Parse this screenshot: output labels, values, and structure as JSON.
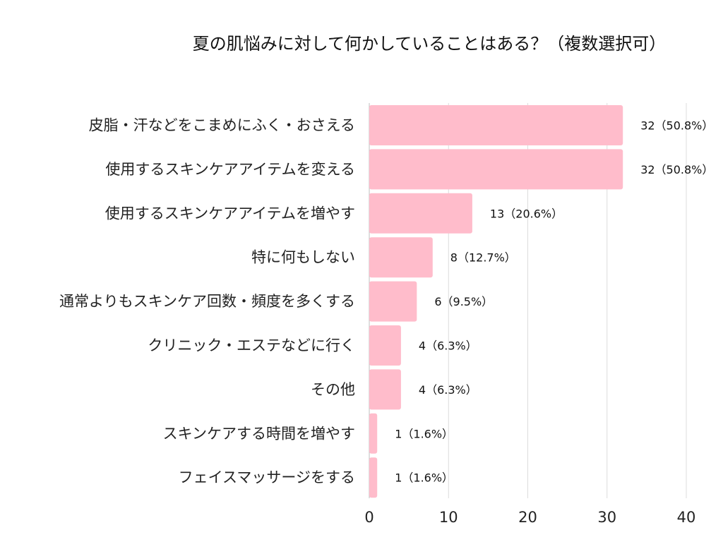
{
  "chart_data": {
    "type": "bar",
    "orientation": "horizontal",
    "title": "夏の肌悩みに対して何かしていることはある？（複数選択可）",
    "categories": [
      "皮脂・汗などをこまめにふく・おさえる",
      "使用するスキンケアアイテムを変える",
      "使用するスキンケアアイテムを増やす",
      "特に何もしない",
      "通常よりもスキンケア回数・頻度を多くする",
      "クリニック・エステなどに行く",
      "その他",
      "スキンケアする時間を増やす",
      "フェイスマッサージをする"
    ],
    "values": [
      32,
      32,
      13,
      8,
      6,
      4,
      4,
      1,
      1
    ],
    "value_labels": [
      "32（50.8%）",
      "32（50.8%）",
      "13（20.6%）",
      "8（12.7%）",
      "6（9.5%）",
      "4（6.3%）",
      "4（6.3%）",
      "1（1.6%）",
      "1（1.6%）"
    ],
    "xlim": [
      0,
      40
    ],
    "xticks": [
      0,
      10,
      20,
      30,
      40
    ],
    "xtick_labels": [
      "0",
      "10",
      "20",
      "30",
      "40"
    ],
    "grid": true,
    "legend": "none",
    "colors": {
      "bar": "#FFBCCB",
      "grid": "#DCDCDC",
      "text": "#222222"
    }
  }
}
